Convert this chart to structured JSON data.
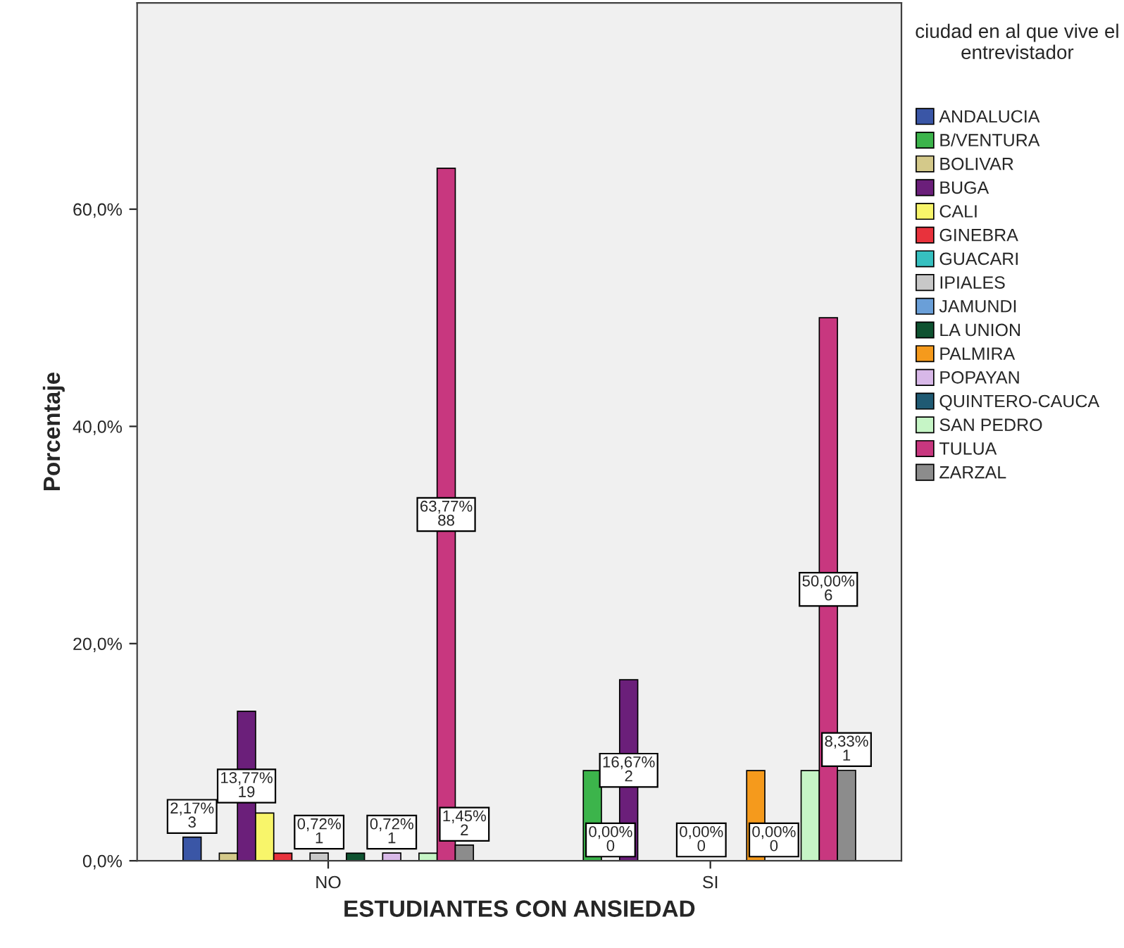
{
  "chart_data": {
    "type": "bar",
    "xlabel": "ESTUDIANTES CON ANSIEDAD",
    "ylabel": "Porcentaje",
    "legend_title": "ciudad en al que vive el entrevistador",
    "legend": "right",
    "grid": false,
    "categories": [
      "NO",
      "SI"
    ],
    "ylim": [
      0,
      79
    ],
    "yticks": [
      {
        "value": 0,
        "label": "0,0%"
      },
      {
        "value": 20,
        "label": "20,0%"
      },
      {
        "value": 40,
        "label": "40,0%"
      },
      {
        "value": 60,
        "label": "60,0%"
      }
    ],
    "series": [
      {
        "name": "ANDALUCIA",
        "color": "#3a56a6",
        "values": [
          2.17,
          0
        ],
        "value_labels": [
          "2,17%\n3",
          null
        ]
      },
      {
        "name": "B/VENTURA",
        "color": "#3cb44b",
        "values": [
          null,
          8.3
        ],
        "value_labels": [
          null,
          null
        ]
      },
      {
        "name": "BOLIVAR",
        "color": "#d4c98a",
        "values": [
          0.7,
          0
        ],
        "value_labels": [
          null,
          "0,00%\n0"
        ]
      },
      {
        "name": "BUGA",
        "color": "#6b1f7a",
        "values": [
          13.77,
          16.67
        ],
        "value_labels": [
          "13,77%\n19",
          "16,67%\n2"
        ]
      },
      {
        "name": "CALI",
        "color": "#f8f56a",
        "values": [
          4.4,
          0
        ],
        "value_labels": [
          null,
          null
        ]
      },
      {
        "name": "GINEBRA",
        "color": "#e8323c",
        "values": [
          0.7,
          0
        ],
        "value_labels": [
          null,
          null
        ]
      },
      {
        "name": "GUACARI",
        "color": "#36c0c0",
        "values": [
          null,
          0
        ],
        "value_labels": [
          null,
          null
        ]
      },
      {
        "name": "IPIALES",
        "color": "#c8c8c8",
        "values": [
          0.72,
          0
        ],
        "value_labels": [
          "0,72%\n1",
          "0,00%\n0"
        ]
      },
      {
        "name": "JAMUNDI",
        "color": "#6a9fd8",
        "values": [
          null,
          0
        ],
        "value_labels": [
          null,
          null
        ]
      },
      {
        "name": "LA UNION",
        "color": "#0e5230",
        "values": [
          0.7,
          0
        ],
        "value_labels": [
          null,
          null
        ]
      },
      {
        "name": "PALMIRA",
        "color": "#f59a1c",
        "values": [
          null,
          8.3
        ],
        "value_labels": [
          null,
          null
        ]
      },
      {
        "name": "POPAYAN",
        "color": "#d8b8e8",
        "values": [
          0.72,
          0
        ],
        "value_labels": [
          "0,72%\n1",
          "0,00%\n0"
        ]
      },
      {
        "name": "QUINTERO-CAUCA",
        "color": "#1f5a73",
        "values": [
          null,
          0
        ],
        "value_labels": [
          null,
          null
        ]
      },
      {
        "name": "SAN PEDRO",
        "color": "#c6f5c6",
        "values": [
          0.7,
          8.3
        ],
        "value_labels": [
          null,
          null
        ]
      },
      {
        "name": "TULUA",
        "color": "#c8377f",
        "values": [
          63.77,
          50.0
        ],
        "value_labels": [
          "63,77%\n88",
          "50,00%\n6"
        ]
      },
      {
        "name": "ZARZAL",
        "color": "#8c8c8c",
        "values": [
          1.45,
          8.33
        ],
        "value_labels": [
          "1,45%\n2",
          "8,33%\n1"
        ]
      }
    ]
  }
}
